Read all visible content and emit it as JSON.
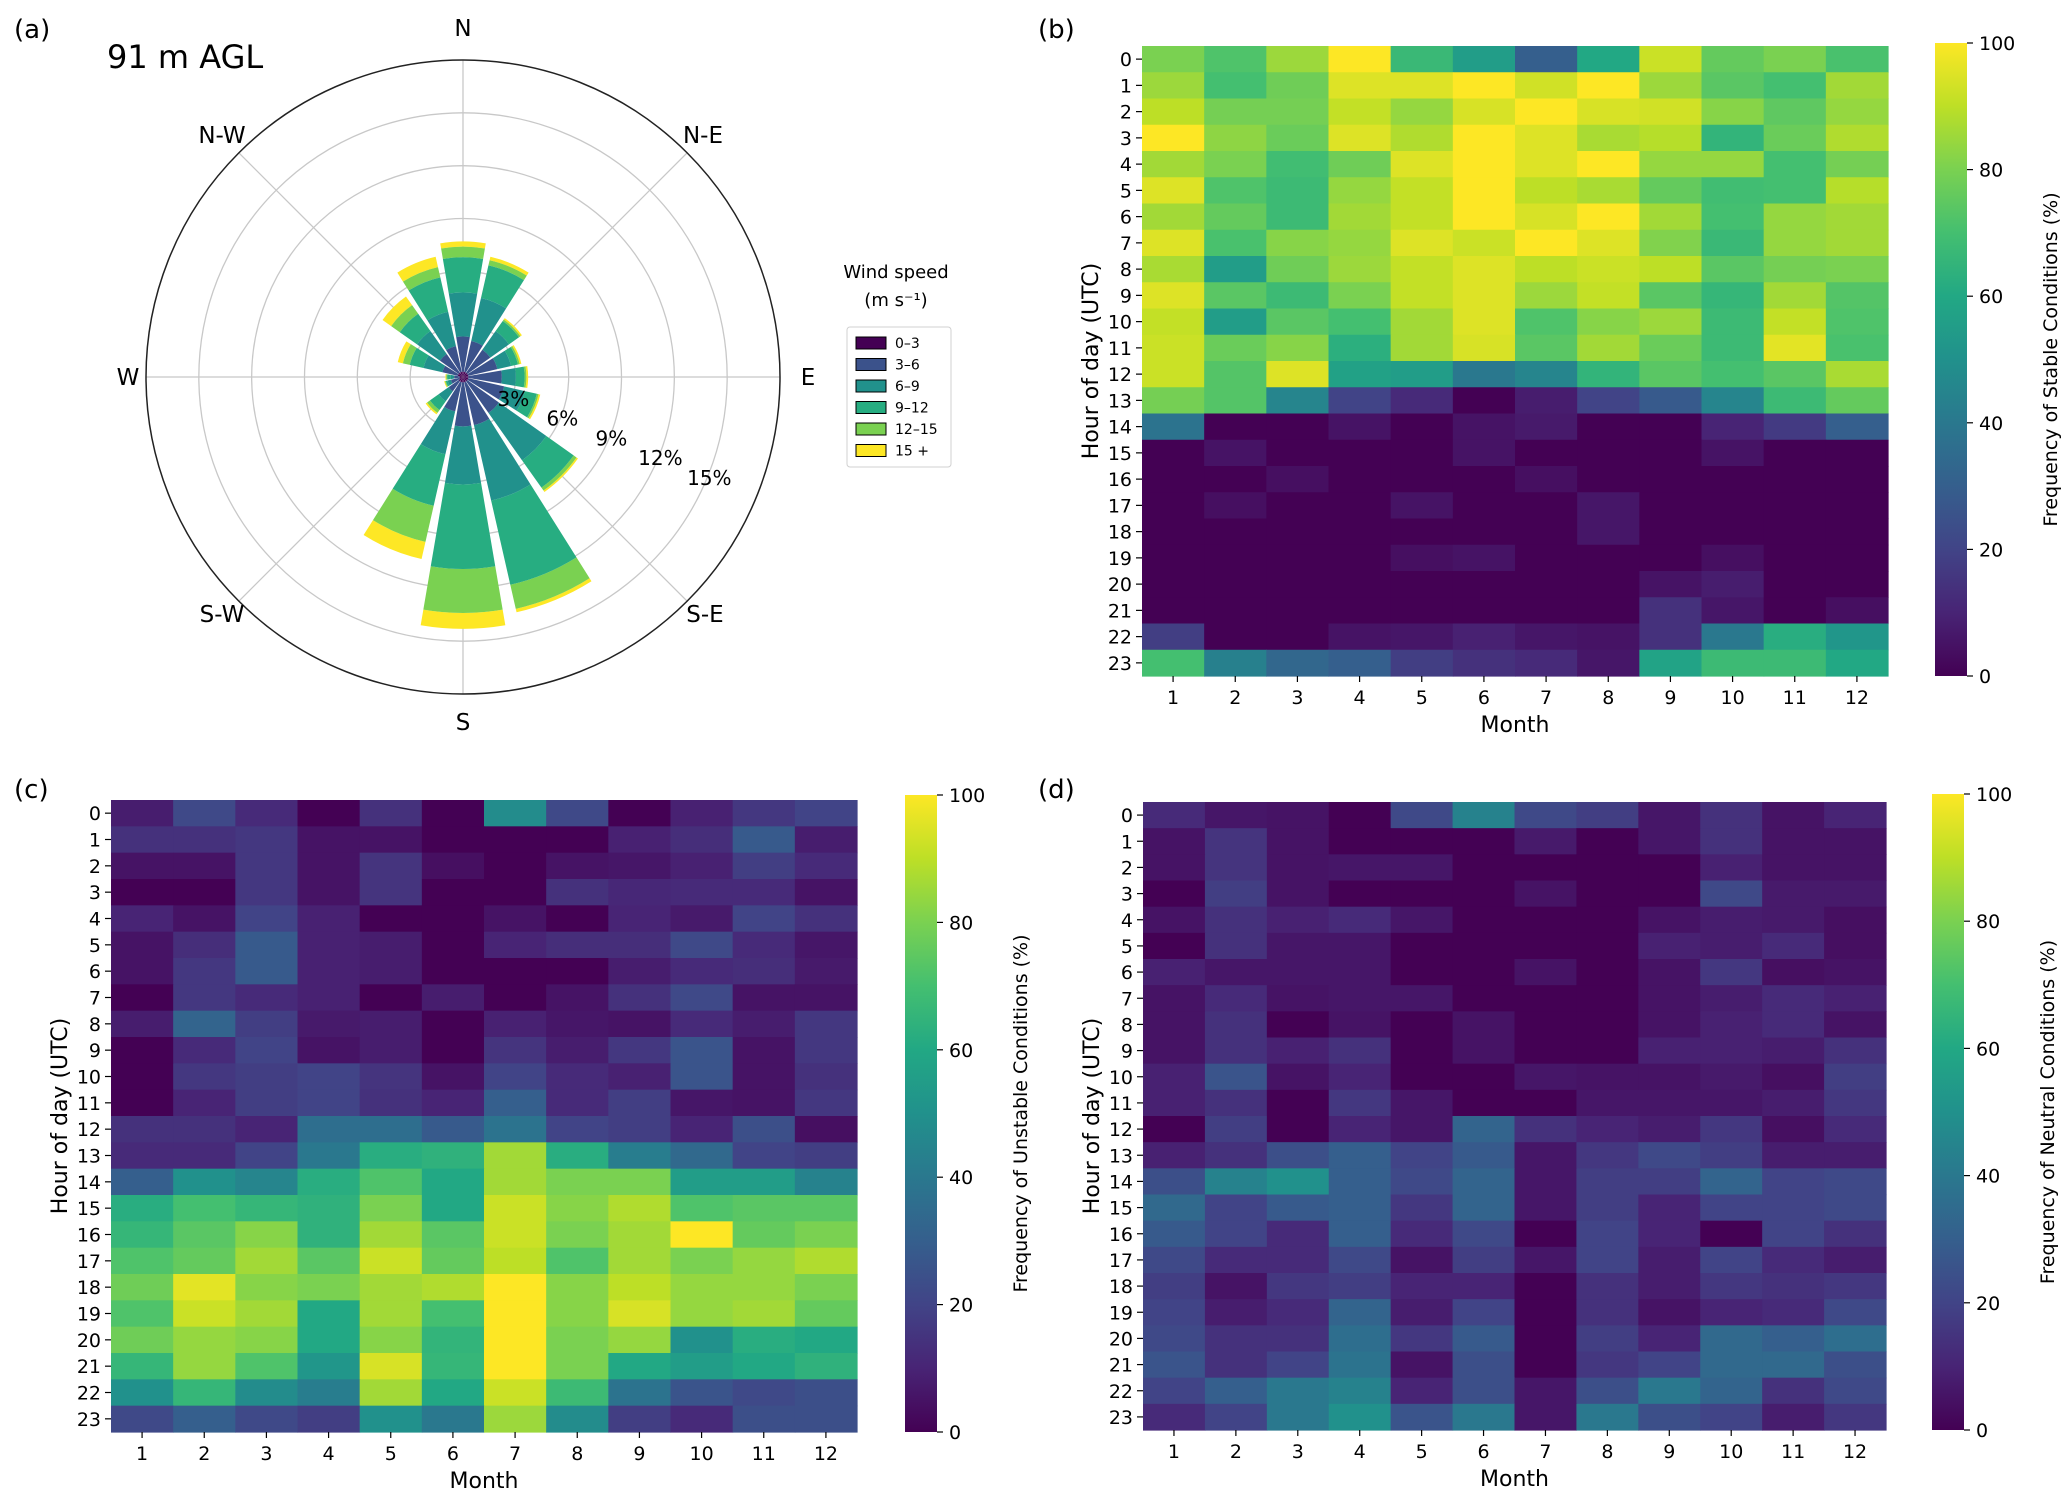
{
  "figure": {
    "panels": [
      "(a)",
      "(b)",
      "(c)",
      "(d)"
    ]
  },
  "chart_data": [
    {
      "type": "windrose",
      "panel": "(a)",
      "title": "91 m AGL",
      "directions": [
        "N",
        "NNE",
        "NE",
        "ENE",
        "E",
        "ESE",
        "SE",
        "SSE",
        "S",
        "SSW",
        "SW",
        "WSW",
        "W",
        "WNW",
        "NW",
        "NNW"
      ],
      "direction_labels": [
        "N",
        "N-E",
        "E",
        "S-E",
        "S",
        "S-W",
        "W",
        "N-W"
      ],
      "radial_ticks": [
        "3%",
        "6%",
        "9%",
        "12%",
        "15%"
      ],
      "radial_max": 18,
      "legend_title": "Wind speed",
      "legend_units": "(m s⁻¹)",
      "bins": [
        "0–3",
        "3–6",
        "6–9",
        "9–12",
        "12–15",
        "15 +"
      ],
      "bin_colors": [
        "#440154",
        "#3b528b",
        "#21918c",
        "#27ad81",
        "#7ad151",
        "#fde725"
      ],
      "cumulative_percent": [
        [
          0.3,
          2.3,
          4.8,
          6.8,
          7.4,
          7.7
        ],
        [
          0.3,
          2.1,
          4.6,
          6.5,
          6.8,
          7.0
        ],
        [
          0.3,
          1.9,
          3.2,
          3.9,
          4.0,
          4.1
        ],
        [
          0.3,
          2.0,
          2.8,
          3.2,
          3.3,
          3.4
        ],
        [
          0.3,
          2.2,
          3.0,
          3.5,
          3.6,
          3.7
        ],
        [
          0.3,
          2.4,
          3.6,
          4.3,
          4.4,
          4.5
        ],
        [
          0.3,
          2.5,
          5.8,
          7.7,
          7.9,
          8.0
        ],
        [
          0.3,
          2.8,
          7.2,
          12.1,
          13.5,
          13.7
        ],
        [
          0.3,
          2.8,
          6.1,
          10.9,
          13.4,
          14.3
        ],
        [
          0.3,
          2.0,
          4.5,
          7.5,
          9.6,
          10.6
        ],
        [
          0.3,
          1.0,
          1.7,
          2.3,
          2.5,
          2.6
        ],
        [
          0.2,
          0.7,
          0.9,
          1.0,
          1.05,
          1.1
        ],
        [
          0.2,
          0.5,
          0.7,
          0.9,
          0.95,
          1.0
        ],
        [
          0.3,
          1.2,
          2.3,
          3.1,
          3.5,
          3.8
        ],
        [
          0.3,
          1.6,
          3.2,
          4.4,
          5.0,
          5.6
        ],
        [
          0.3,
          1.8,
          3.8,
          5.8,
          6.4,
          7.0
        ]
      ]
    },
    {
      "type": "heatmap",
      "panel": "(b)",
      "xlabel": "Month",
      "ylabel": "Hour of day (UTC)",
      "x": [
        "1",
        "2",
        "3",
        "4",
        "5",
        "6",
        "7",
        "8",
        "9",
        "10",
        "11",
        "12"
      ],
      "y": [
        "0",
        "1",
        "2",
        "3",
        "4",
        "5",
        "6",
        "7",
        "8",
        "9",
        "10",
        "11",
        "12",
        "13",
        "14",
        "15",
        "16",
        "17",
        "18",
        "19",
        "20",
        "21",
        "22",
        "23"
      ],
      "colorbar_label": "Frequency of Stable Conditions (%)",
      "colorbar_ticks": [
        "0",
        "20",
        "40",
        "60",
        "80",
        "100"
      ],
      "vmin": 0,
      "vmax": 100,
      "values": [
        [
          80,
          72,
          85,
          100,
          67,
          55,
          30,
          60,
          92,
          76,
          80,
          71
        ],
        [
          85,
          70,
          78,
          95,
          95,
          100,
          93,
          100,
          85,
          74,
          70,
          86
        ],
        [
          90,
          79,
          79,
          91,
          84,
          94,
          100,
          94,
          93,
          82,
          75,
          84
        ],
        [
          100,
          83,
          77,
          95,
          88,
          100,
          95,
          87,
          89,
          65,
          77,
          88
        ],
        [
          86,
          80,
          69,
          78,
          95,
          100,
          95,
          100,
          84,
          84,
          70,
          79
        ],
        [
          95,
          72,
          68,
          84,
          91,
          100,
          90,
          87,
          76,
          69,
          70,
          89
        ],
        [
          86,
          76,
          68,
          86,
          91,
          100,
          94,
          100,
          86,
          70,
          84,
          86
        ],
        [
          95,
          71,
          82,
          84,
          95,
          92,
          100,
          95,
          81,
          67,
          84,
          86
        ],
        [
          87,
          55,
          78,
          85,
          91,
          95,
          90,
          92,
          90,
          74,
          79,
          80
        ],
        [
          95,
          74,
          68,
          80,
          91,
          95,
          85,
          91,
          74,
          66,
          86,
          73
        ],
        [
          91,
          55,
          74,
          70,
          86,
          95,
          72,
          82,
          85,
          68,
          91,
          72
        ],
        [
          92,
          77,
          82,
          63,
          86,
          94,
          74,
          86,
          77,
          68,
          96,
          71
        ],
        [
          92,
          73,
          95,
          57,
          55,
          40,
          45,
          65,
          74,
          70,
          74,
          87
        ],
        [
          79,
          73,
          45,
          20,
          12,
          0,
          8,
          20,
          28,
          45,
          68,
          76
        ],
        [
          38,
          0,
          0,
          5,
          0,
          5,
          7,
          0,
          0,
          10,
          17,
          30
        ],
        [
          0,
          5,
          0,
          0,
          0,
          5,
          0,
          0,
          0,
          5,
          0,
          0
        ],
        [
          0,
          0,
          4,
          0,
          0,
          0,
          4,
          0,
          0,
          0,
          0,
          0
        ],
        [
          0,
          4,
          0,
          0,
          5,
          0,
          0,
          6,
          0,
          0,
          0,
          0
        ],
        [
          0,
          0,
          0,
          0,
          0,
          0,
          0,
          6,
          0,
          0,
          0,
          0
        ],
        [
          0,
          0,
          0,
          0,
          4,
          5,
          0,
          0,
          0,
          4,
          0,
          0
        ],
        [
          0,
          0,
          0,
          0,
          0,
          0,
          0,
          0,
          5,
          8,
          0,
          0
        ],
        [
          0,
          0,
          0,
          0,
          0,
          0,
          0,
          0,
          14,
          6,
          0,
          4
        ],
        [
          18,
          0,
          0,
          5,
          6,
          9,
          6,
          5,
          14,
          40,
          62,
          52
        ],
        [
          70,
          43,
          33,
          30,
          18,
          14,
          12,
          6,
          58,
          68,
          68,
          60
        ]
      ]
    },
    {
      "type": "heatmap",
      "panel": "(c)",
      "xlabel": "Month",
      "ylabel": "Hour of day (UTC)",
      "x": [
        "1",
        "2",
        "3",
        "4",
        "5",
        "6",
        "7",
        "8",
        "9",
        "10",
        "11",
        "12"
      ],
      "y": [
        "0",
        "1",
        "2",
        "3",
        "4",
        "5",
        "6",
        "7",
        "8",
        "9",
        "10",
        "11",
        "12",
        "13",
        "14",
        "15",
        "16",
        "17",
        "18",
        "19",
        "20",
        "21",
        "22",
        "23"
      ],
      "colorbar_label": "Frequency of Unstable Conditions (%)",
      "colorbar_ticks": [
        "0",
        "20",
        "40",
        "60",
        "80",
        "100"
      ],
      "vmin": 0,
      "vmax": 100,
      "values": [
        [
          8,
          22,
          12,
          0,
          14,
          0,
          48,
          22,
          0,
          9,
          16,
          20
        ],
        [
          14,
          14,
          16,
          5,
          5,
          0,
          0,
          0,
          9,
          13,
          28,
          8
        ],
        [
          5,
          5,
          16,
          5,
          15,
          4,
          0,
          5,
          6,
          9,
          18,
          12
        ],
        [
          0,
          0,
          16,
          5,
          15,
          0,
          0,
          14,
          11,
          12,
          12,
          5
        ],
        [
          10,
          5,
          20,
          9,
          0,
          0,
          5,
          0,
          10,
          7,
          20,
          14
        ],
        [
          5,
          13,
          28,
          9,
          8,
          0,
          10,
          13,
          13,
          22,
          12,
          6
        ],
        [
          5,
          16,
          28,
          9,
          8,
          0,
          0,
          0,
          8,
          12,
          13,
          7
        ],
        [
          0,
          16,
          12,
          9,
          0,
          8,
          0,
          5,
          14,
          22,
          5,
          5
        ],
        [
          8,
          32,
          18,
          7,
          8,
          0,
          9,
          6,
          5,
          12,
          8,
          16
        ],
        [
          0,
          12,
          20,
          5,
          8,
          0,
          15,
          8,
          16,
          26,
          5,
          16
        ],
        [
          0,
          16,
          18,
          20,
          15,
          5,
          20,
          12,
          9,
          26,
          5,
          14
        ],
        [
          0,
          10,
          18,
          20,
          14,
          10,
          30,
          12,
          18,
          6,
          5,
          16
        ],
        [
          14,
          14,
          10,
          36,
          36,
          28,
          38,
          20,
          18,
          10,
          24,
          4
        ],
        [
          12,
          12,
          20,
          40,
          62,
          64,
          86,
          62,
          42,
          34,
          20,
          18
        ],
        [
          30,
          50,
          45,
          62,
          72,
          60,
          86,
          80,
          80,
          55,
          55,
          44
        ],
        [
          62,
          70,
          66,
          64,
          80,
          60,
          92,
          82,
          88,
          72,
          74,
          74
        ],
        [
          66,
          74,
          82,
          64,
          86,
          74,
          92,
          80,
          86,
          100,
          76,
          80
        ],
        [
          72,
          76,
          86,
          74,
          92,
          76,
          90,
          72,
          86,
          80,
          84,
          88
        ],
        [
          78,
          96,
          82,
          80,
          86,
          88,
          100,
          82,
          90,
          84,
          84,
          80
        ],
        [
          72,
          92,
          86,
          60,
          86,
          70,
          100,
          82,
          94,
          84,
          86,
          76
        ],
        [
          78,
          84,
          82,
          60,
          82,
          65,
          100,
          80,
          84,
          50,
          62,
          60
        ],
        [
          66,
          84,
          72,
          52,
          94,
          66,
          100,
          80,
          60,
          55,
          60,
          64
        ],
        [
          50,
          66,
          48,
          42,
          86,
          60,
          92,
          68,
          38,
          26,
          22,
          24
        ],
        [
          22,
          30,
          22,
          18,
          50,
          40,
          85,
          48,
          18,
          12,
          24,
          24
        ]
      ]
    },
    {
      "type": "heatmap",
      "panel": "(d)",
      "xlabel": "Month",
      "ylabel": "Hour of day (UTC)",
      "x": [
        "1",
        "2",
        "3",
        "4",
        "5",
        "6",
        "7",
        "8",
        "9",
        "10",
        "11",
        "12"
      ],
      "y": [
        "0",
        "1",
        "2",
        "3",
        "4",
        "5",
        "6",
        "7",
        "8",
        "9",
        "10",
        "11",
        "12",
        "13",
        "14",
        "15",
        "16",
        "17",
        "18",
        "19",
        "20",
        "21",
        "22",
        "23"
      ],
      "colorbar_label": "Frequency of Neutral Conditions (%)",
      "colorbar_ticks": [
        "0",
        "20",
        "40",
        "60",
        "80",
        "100"
      ],
      "vmin": 0,
      "vmax": 100,
      "values": [
        [
          12,
          6,
          5,
          0,
          22,
          44,
          22,
          18,
          6,
          14,
          5,
          10
        ],
        [
          5,
          15,
          5,
          0,
          0,
          0,
          7,
          0,
          6,
          14,
          5,
          5
        ],
        [
          5,
          15,
          5,
          6,
          6,
          0,
          0,
          0,
          0,
          9,
          5,
          5
        ],
        [
          0,
          18,
          5,
          0,
          0,
          0,
          5,
          0,
          0,
          22,
          7,
          7
        ],
        [
          5,
          14,
          9,
          12,
          6,
          0,
          0,
          0,
          5,
          8,
          7,
          4
        ],
        [
          0,
          14,
          6,
          6,
          0,
          0,
          0,
          0,
          9,
          8,
          12,
          4
        ],
        [
          9,
          6,
          6,
          6,
          0,
          0,
          5,
          0,
          5,
          16,
          4,
          5
        ],
        [
          5,
          12,
          5,
          6,
          6,
          0,
          0,
          0,
          5,
          8,
          12,
          9
        ],
        [
          5,
          14,
          0,
          5,
          0,
          5,
          0,
          0,
          5,
          9,
          12,
          5
        ],
        [
          5,
          14,
          9,
          14,
          0,
          5,
          0,
          0,
          9,
          9,
          8,
          14
        ],
        [
          9,
          26,
          5,
          10,
          0,
          0,
          6,
          5,
          5,
          7,
          4,
          18
        ],
        [
          9,
          14,
          0,
          16,
          6,
          0,
          0,
          6,
          6,
          6,
          8,
          16
        ],
        [
          0,
          18,
          0,
          10,
          6,
          32,
          14,
          10,
          8,
          16,
          4,
          12
        ],
        [
          9,
          14,
          24,
          30,
          20,
          28,
          6,
          16,
          22,
          18,
          8,
          8
        ],
        [
          24,
          44,
          50,
          30,
          22,
          32,
          6,
          18,
          18,
          32,
          20,
          22
        ],
        [
          34,
          20,
          28,
          30,
          16,
          32,
          6,
          18,
          10,
          20,
          20,
          22
        ],
        [
          28,
          20,
          12,
          30,
          12,
          22,
          0,
          20,
          10,
          0,
          20,
          14
        ],
        [
          22,
          12,
          12,
          22,
          5,
          18,
          6,
          20,
          8,
          20,
          12,
          8
        ],
        [
          18,
          5,
          16,
          18,
          10,
          10,
          0,
          14,
          8,
          16,
          14,
          16
        ],
        [
          20,
          8,
          12,
          32,
          8,
          20,
          0,
          14,
          5,
          10,
          12,
          22
        ],
        [
          22,
          14,
          14,
          36,
          16,
          28,
          0,
          18,
          10,
          34,
          30,
          36
        ],
        [
          26,
          14,
          20,
          38,
          5,
          24,
          0,
          16,
          20,
          34,
          34,
          24
        ],
        [
          20,
          30,
          40,
          44,
          10,
          24,
          6,
          24,
          40,
          32,
          14,
          22
        ],
        [
          12,
          20,
          40,
          50,
          26,
          40,
          6,
          40,
          24,
          20,
          8,
          16
        ]
      ]
    }
  ]
}
